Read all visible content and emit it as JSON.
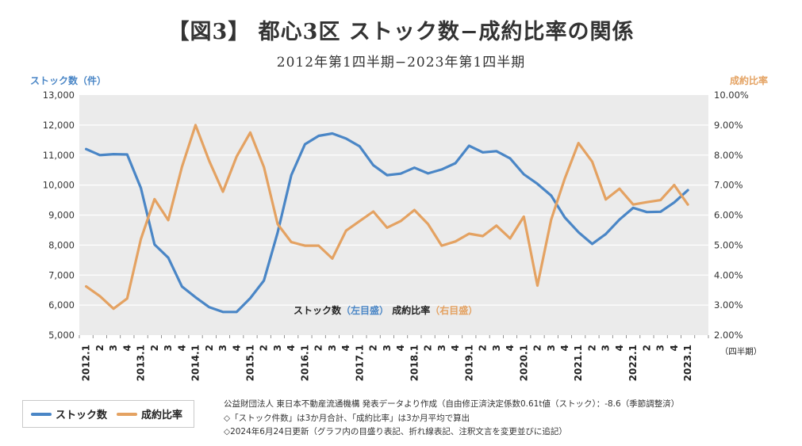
{
  "title": "【図3】 都心3区 ストック数−成約比率の関係",
  "subtitle": "2012年第1四半期−2023年第1四半期",
  "notes": [
    "公益財団法人 東日本不動産流通機構 発表データより作成（自由修正済決定係数0.61t値（ストック）：-8.6（季節調整済）",
    "◇「ストック件数」は3か月合計、「成約比率」は3か月平均で算出",
    "◇2024年6月24日更新（グラフ内の目盛り表記、折れ線表記、注釈文言を変更並びに追記）"
  ],
  "legend": {
    "stock": "ストック数",
    "ratio": "成約比率"
  },
  "colors": {
    "stock": "#4a86c6",
    "ratio": "#e4a262",
    "plot_bg": "#ebebeb",
    "grid": "#ffffff"
  },
  "chart_data": {
    "type": "line",
    "x_axis_label": "（四半期）",
    "x_tick_labels": [
      "2012.1",
      "2",
      "3",
      "4",
      "2013.1",
      "2",
      "3",
      "4",
      "2014.1",
      "2",
      "3",
      "4",
      "2015.1",
      "2",
      "3",
      "4",
      "2016.1",
      "2",
      "3",
      "4",
      "2017.1",
      "2",
      "3",
      "4",
      "2018.1",
      "2",
      "3",
      "4",
      "2019.1",
      "2",
      "3",
      "4",
      "2020.1",
      "2",
      "3",
      "4",
      "2021.1",
      "2",
      "3",
      "4",
      "2022.1",
      "2",
      "3",
      "4",
      "2023.1",
      ""
    ],
    "y_left": {
      "label": "ストック数（件）",
      "min": 5000,
      "max": 13000,
      "ticks": [
        "5,000",
        "6,000",
        "7,000",
        "8,000",
        "9,000",
        "10,000",
        "11,000",
        "12,000",
        "13,000"
      ]
    },
    "y_right": {
      "label": "成約比率",
      "min": 2,
      "max": 10,
      "ticks": [
        "2.00%",
        "3.00%",
        "4.00%",
        "5.00%",
        "6.00%",
        "7.00%",
        "8.00%",
        "9.00%",
        "10.00%"
      ]
    },
    "annotation": {
      "stock_label": "ストック数",
      "stock_suffix": "（左目盛）",
      "ratio_label": "成約比率",
      "ratio_suffix": "（右目盛）"
    },
    "series": [
      {
        "name": "ストック数",
        "axis": "left",
        "values": [
          11200,
          11000,
          11030,
          11020,
          9900,
          8020,
          7580,
          6620,
          6260,
          5930,
          5770,
          5770,
          6230,
          6820,
          8420,
          10330,
          11360,
          11640,
          11720,
          11550,
          11290,
          10660,
          10330,
          10380,
          10580,
          10390,
          10520,
          10730,
          11310,
          11090,
          11130,
          10890,
          10360,
          10040,
          9650,
          8920,
          8430,
          8040,
          8370,
          8850,
          9240,
          9100,
          9110,
          9420,
          9830
        ],
        "color": "#4a86c6"
      },
      {
        "name": "成約比率",
        "axis": "right",
        "values": [
          3.62,
          3.3,
          2.88,
          3.22,
          5.2,
          6.53,
          5.83,
          7.6,
          9.0,
          7.8,
          6.78,
          7.95,
          8.75,
          7.6,
          5.7,
          5.1,
          4.98,
          4.98,
          4.55,
          5.48,
          5.8,
          6.12,
          5.58,
          5.8,
          6.17,
          5.7,
          4.98,
          5.12,
          5.38,
          5.3,
          5.65,
          5.22,
          5.95,
          3.65,
          5.85,
          7.22,
          8.4,
          7.78,
          6.52,
          6.88,
          6.35,
          6.43,
          6.5,
          7.0,
          6.35
        ],
        "color": "#e4a262"
      }
    ]
  }
}
